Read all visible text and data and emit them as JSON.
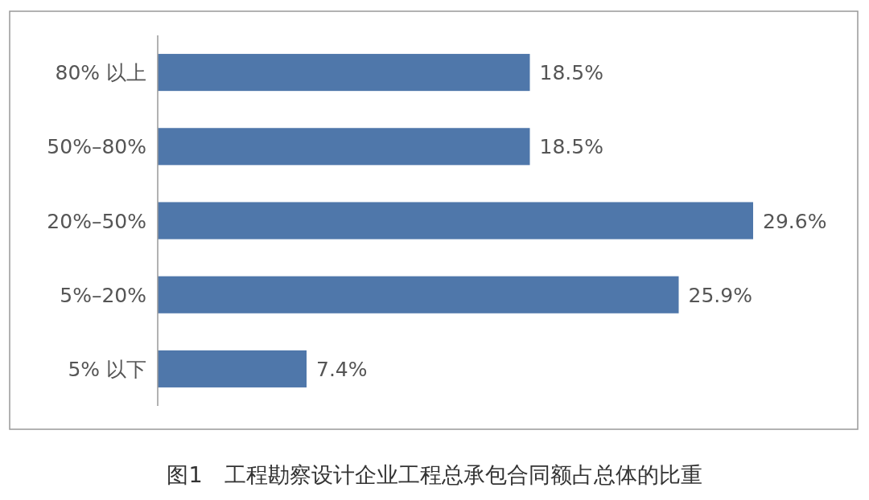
{
  "chart_data": {
    "type": "bar",
    "orientation": "horizontal",
    "title": "图1　工程勘察设计企业工程总承包合同额占总体的比重",
    "categories": [
      "80% 以上",
      "50%–80%",
      "20%–50%",
      "5%–20%",
      "5% 以下"
    ],
    "values": [
      18.5,
      18.5,
      29.6,
      25.9,
      7.4
    ],
    "value_labels": [
      "18.5%",
      "18.5%",
      "29.6%",
      "25.9%",
      "7.4%"
    ],
    "color": "#4f77aa"
  }
}
